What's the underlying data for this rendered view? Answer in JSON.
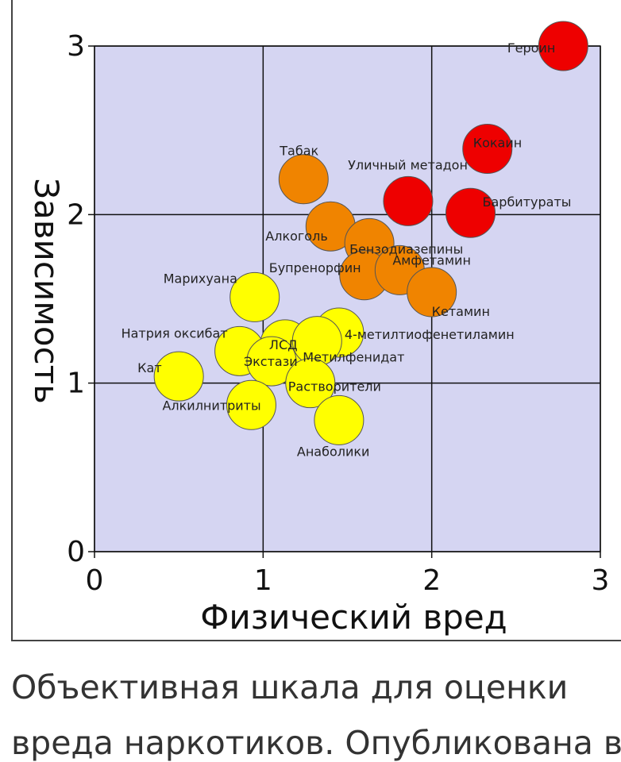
{
  "chart_data": {
    "type": "scatter",
    "title": "",
    "xlabel": "Физический вред",
    "ylabel": "Зависимость",
    "xlim": [
      0,
      3
    ],
    "ylim": [
      0,
      3
    ],
    "x_ticks": [
      "0",
      "1",
      "2",
      "3"
    ],
    "y_ticks": [
      "0",
      "1",
      "2",
      "3"
    ],
    "grid": true,
    "plot_background": "#d5d5f2",
    "colors": {
      "red": "#ee0000",
      "orange": "#f08400",
      "yellow": "#ffff00"
    },
    "points": [
      {
        "label": "Героин",
        "x": 2.78,
        "y": 3.0,
        "color": "red"
      },
      {
        "label": "Кокаин",
        "x": 2.33,
        "y": 2.39,
        "color": "red"
      },
      {
        "label": "Уличный метадон",
        "x": 1.86,
        "y": 2.08,
        "color": "red"
      },
      {
        "label": "Барбитураты",
        "x": 2.23,
        "y": 2.01,
        "color": "red"
      },
      {
        "label": "Табак",
        "x": 1.24,
        "y": 2.21,
        "color": "orange"
      },
      {
        "label": "Алкоголь",
        "x": 1.4,
        "y": 1.93,
        "color": "orange"
      },
      {
        "label": "Бензодиазепины",
        "x": 1.63,
        "y": 1.83,
        "color": "orange"
      },
      {
        "label": "Бупренорфин",
        "x": 1.6,
        "y": 1.64,
        "color": "orange"
      },
      {
        "label": "Амфетамин",
        "x": 1.81,
        "y": 1.67,
        "color": "orange"
      },
      {
        "label": "Кетамин",
        "x": 2.0,
        "y": 1.54,
        "color": "orange"
      },
      {
        "label": "Марихуана",
        "x": 0.95,
        "y": 1.51,
        "color": "yellow"
      },
      {
        "label": "4-метилтиофенетиламин",
        "x": 1.45,
        "y": 1.3,
        "color": "yellow"
      },
      {
        "label": "ЛСД",
        "x": 1.13,
        "y": 1.23,
        "color": "yellow"
      },
      {
        "label": "Метилфенидат",
        "x": 1.32,
        "y": 1.25,
        "color": "yellow"
      },
      {
        "label": "Натрия оксибат",
        "x": 0.86,
        "y": 1.19,
        "color": "yellow"
      },
      {
        "label": "Экстази",
        "x": 1.05,
        "y": 1.13,
        "color": "yellow"
      },
      {
        "label": "Растворители",
        "x": 1.28,
        "y": 1.0,
        "color": "yellow"
      },
      {
        "label": "Кат",
        "x": 0.5,
        "y": 1.04,
        "color": "yellow"
      },
      {
        "label": "Алкилнитриты",
        "x": 0.93,
        "y": 0.87,
        "color": "yellow"
      },
      {
        "label": "Анаболики",
        "x": 1.45,
        "y": 0.78,
        "color": "yellow"
      }
    ]
  },
  "caption": {
    "line1": "Объективная шкала для оценки",
    "line2": "вреда наркотиков. Опубликована в"
  }
}
